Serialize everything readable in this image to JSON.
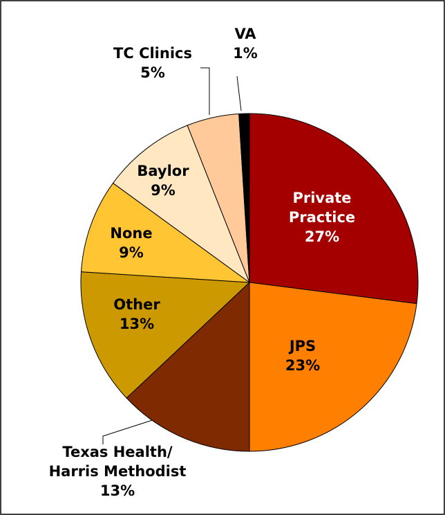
{
  "chart_data": {
    "type": "pie",
    "categories": [
      "Private\nPractice",
      "JPS",
      "Texas Health/\nHarris Methodist",
      "Other",
      "None",
      "Baylor",
      "TC Clinics",
      "VA"
    ],
    "values": [
      27,
      23,
      13,
      13,
      9,
      9,
      5,
      1
    ],
    "value_labels": [
      "27%",
      "23%",
      "13%",
      "13%",
      "9%",
      "9%",
      "5%",
      "1%"
    ],
    "colors": [
      "#a50000",
      "#ff7f00",
      "#7f2a00",
      "#cc9900",
      "#ffc533",
      "#ffe7c2",
      "#ffc999",
      "#000000"
    ]
  }
}
